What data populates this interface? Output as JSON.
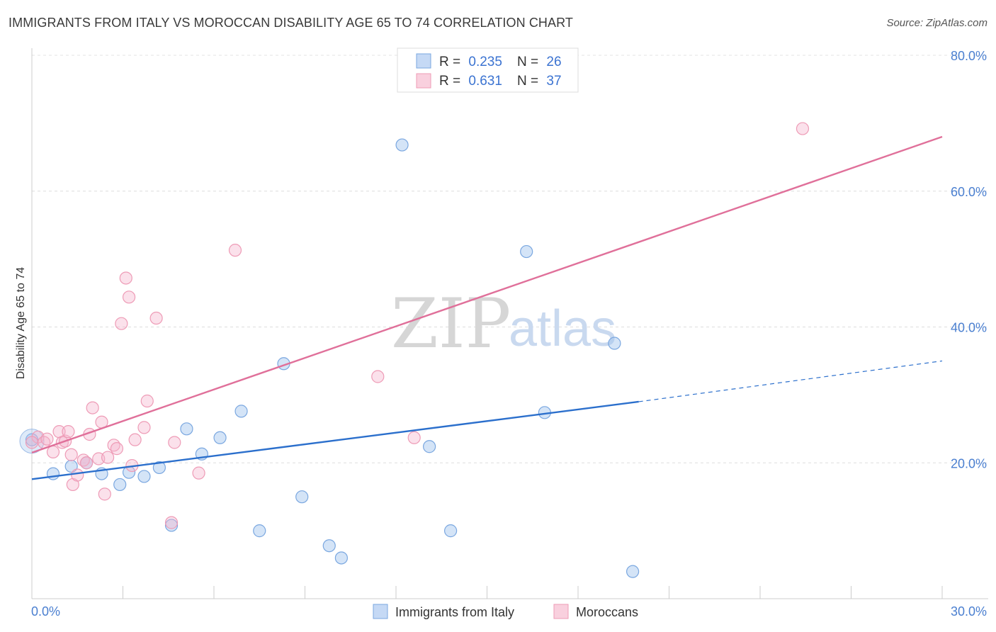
{
  "header": {
    "title": "IMMIGRANTS FROM ITALY VS MOROCCAN DISABILITY AGE 65 TO 74 CORRELATION CHART",
    "source": "Source: ZipAtlas.com"
  },
  "watermark": {
    "zip": "ZIP",
    "atlas": "atlas"
  },
  "legend_top": [
    {
      "r_label": "R =",
      "r_value": "0.235",
      "n_label": "N =",
      "n_value": "26"
    },
    {
      "r_label": "R =",
      "r_value": "0.631",
      "n_label": "N =",
      "n_value": "37"
    }
  ],
  "chart_data": {
    "type": "scatter",
    "title": "IMMIGRANTS FROM ITALY VS MOROCCAN DISABILITY AGE 65 TO 74 CORRELATION CHART",
    "xlabel": "",
    "ylabel": "Disability Age 65 to 74",
    "xlim": [
      0,
      30
    ],
    "ylim": [
      0,
      80
    ],
    "x_tick_labels": [
      "0.0%",
      "30.0%"
    ],
    "y_tick_labels": [
      "20.0%",
      "40.0%",
      "60.0%",
      "80.0%"
    ],
    "y_tick_values": [
      20,
      40,
      60,
      80
    ],
    "grid": true,
    "legend_position": "top-center",
    "colors": {
      "italy": "#7aa7e0",
      "italy_line": "#2b6fcc",
      "moroccans": "#ee9bb6",
      "moroccans_line": "#e0709a"
    },
    "series": [
      {
        "name": "Immigrants from Italy",
        "R": 0.235,
        "N": 26,
        "trend": {
          "x": [
            0,
            20
          ],
          "y": [
            17.6,
            29.0
          ],
          "dashed_to": [
            30,
            35.0
          ]
        },
        "points": [
          {
            "x": 0.0,
            "y": 23.4
          },
          {
            "x": 0.7,
            "y": 18.4
          },
          {
            "x": 1.3,
            "y": 19.5
          },
          {
            "x": 1.8,
            "y": 20.0
          },
          {
            "x": 2.3,
            "y": 18.4
          },
          {
            "x": 2.9,
            "y": 16.8
          },
          {
            "x": 3.2,
            "y": 18.6
          },
          {
            "x": 3.7,
            "y": 18.0
          },
          {
            "x": 4.2,
            "y": 19.3
          },
          {
            "x": 4.6,
            "y": 10.8
          },
          {
            "x": 5.1,
            "y": 25.0
          },
          {
            "x": 5.6,
            "y": 21.3
          },
          {
            "x": 6.2,
            "y": 23.7
          },
          {
            "x": 6.9,
            "y": 27.6
          },
          {
            "x": 7.5,
            "y": 10.0
          },
          {
            "x": 8.3,
            "y": 34.6
          },
          {
            "x": 8.9,
            "y": 15.0
          },
          {
            "x": 9.8,
            "y": 7.8
          },
          {
            "x": 10.2,
            "y": 6.0
          },
          {
            "x": 12.2,
            "y": 66.8
          },
          {
            "x": 13.1,
            "y": 22.4
          },
          {
            "x": 13.8,
            "y": 10.0
          },
          {
            "x": 16.3,
            "y": 51.1
          },
          {
            "x": 16.9,
            "y": 27.4
          },
          {
            "x": 19.2,
            "y": 37.6
          },
          {
            "x": 19.8,
            "y": 4.0
          }
        ]
      },
      {
        "name": "Moroccans",
        "R": 0.631,
        "N": 37,
        "trend": {
          "x": [
            0,
            30
          ],
          "y": [
            21.5,
            68.0
          ]
        },
        "points": [
          {
            "x": 0.2,
            "y": 23.8
          },
          {
            "x": 0.4,
            "y": 23.0
          },
          {
            "x": 0.5,
            "y": 23.5
          },
          {
            "x": 0.7,
            "y": 21.6
          },
          {
            "x": 0.9,
            "y": 24.6
          },
          {
            "x": 1.0,
            "y": 23.0
          },
          {
            "x": 1.1,
            "y": 23.2
          },
          {
            "x": 1.2,
            "y": 24.6
          },
          {
            "x": 1.3,
            "y": 21.2
          },
          {
            "x": 1.35,
            "y": 16.8
          },
          {
            "x": 1.5,
            "y": 18.2
          },
          {
            "x": 1.7,
            "y": 20.4
          },
          {
            "x": 1.8,
            "y": 20.0
          },
          {
            "x": 1.9,
            "y": 24.2
          },
          {
            "x": 2.0,
            "y": 28.1
          },
          {
            "x": 2.2,
            "y": 20.6
          },
          {
            "x": 2.3,
            "y": 26.0
          },
          {
            "x": 2.4,
            "y": 15.4
          },
          {
            "x": 2.5,
            "y": 20.8
          },
          {
            "x": 2.7,
            "y": 22.6
          },
          {
            "x": 2.8,
            "y": 22.1
          },
          {
            "x": 2.95,
            "y": 40.5
          },
          {
            "x": 3.1,
            "y": 47.2
          },
          {
            "x": 3.2,
            "y": 44.4
          },
          {
            "x": 3.3,
            "y": 19.6
          },
          {
            "x": 3.4,
            "y": 23.4
          },
          {
            "x": 3.7,
            "y": 25.2
          },
          {
            "x": 3.8,
            "y": 29.1
          },
          {
            "x": 4.1,
            "y": 41.3
          },
          {
            "x": 4.6,
            "y": 11.2
          },
          {
            "x": 4.7,
            "y": 23.0
          },
          {
            "x": 5.5,
            "y": 18.5
          },
          {
            "x": 6.7,
            "y": 51.3
          },
          {
            "x": 11.4,
            "y": 32.7
          },
          {
            "x": 12.6,
            "y": 23.7
          },
          {
            "x": 25.4,
            "y": 69.2
          },
          {
            "x": 0.0,
            "y": 23.0
          }
        ]
      }
    ]
  }
}
